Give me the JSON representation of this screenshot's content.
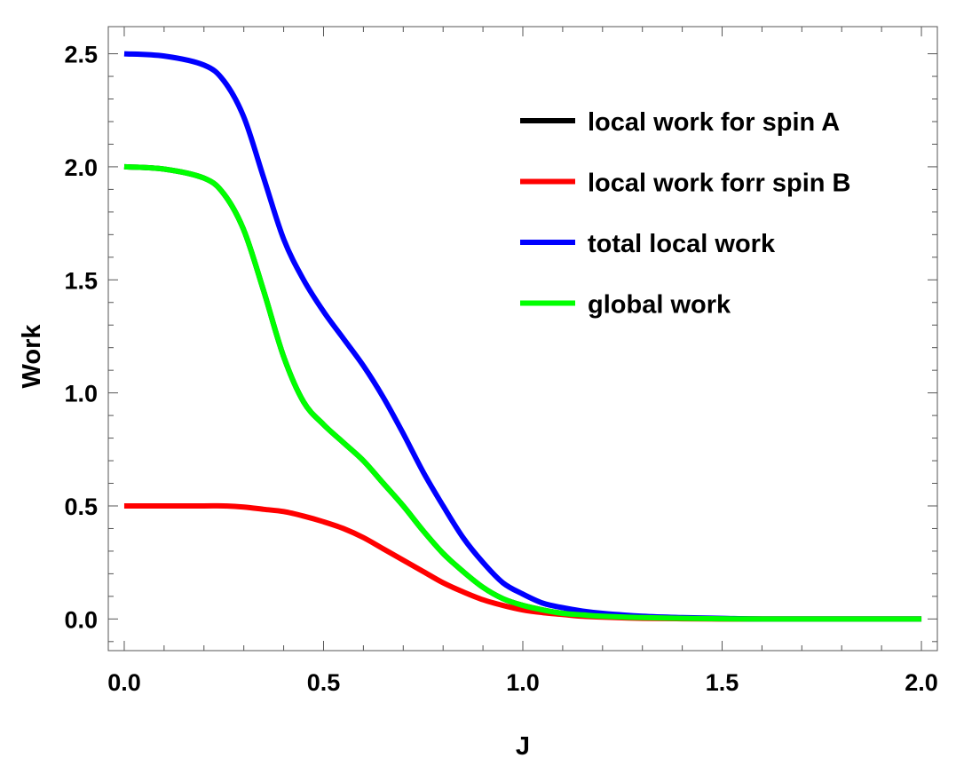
{
  "chart_data": {
    "type": "line",
    "title": "",
    "xlabel": "J",
    "ylabel": "Work",
    "xlim": [
      -0.04,
      2.04
    ],
    "ylim": [
      -0.14,
      2.62
    ],
    "xticks": [
      0.0,
      0.5,
      1.0,
      1.5,
      2.0
    ],
    "xtick_labels": [
      "0.0",
      "0.5",
      "1.0",
      "1.5",
      "2.0"
    ],
    "yticks": [
      0.0,
      0.5,
      1.0,
      1.5,
      2.0,
      2.5
    ],
    "ytick_labels": [
      "0.0",
      "0.5",
      "1.0",
      "1.5",
      "2.0",
      "2.5"
    ],
    "grid": false,
    "legend_position": "top-right",
    "x": [
      0.0,
      0.1,
      0.2,
      0.25,
      0.3,
      0.35,
      0.4,
      0.45,
      0.5,
      0.55,
      0.6,
      0.65,
      0.7,
      0.75,
      0.8,
      0.85,
      0.9,
      0.95,
      1.0,
      1.05,
      1.1,
      1.15,
      1.2,
      1.3,
      1.4,
      1.5,
      1.6,
      1.8,
      2.0
    ],
    "series": [
      {
        "name": "local work for spin A",
        "color": "#000000",
        "values": [
          2.0,
          1.99,
          1.95,
          1.88,
          1.72,
          1.45,
          1.16,
          0.96,
          0.86,
          0.78,
          0.7,
          0.6,
          0.5,
          0.39,
          0.29,
          0.21,
          0.14,
          0.09,
          0.06,
          0.04,
          0.025,
          0.018,
          0.012,
          0.006,
          0.003,
          0.001,
          0.0,
          0.0,
          0.0
        ]
      },
      {
        "name": "local work forr spin B",
        "color": "#ff0000",
        "values": [
          0.5,
          0.5,
          0.5,
          0.5,
          0.495,
          0.485,
          0.475,
          0.455,
          0.43,
          0.4,
          0.36,
          0.31,
          0.26,
          0.21,
          0.16,
          0.12,
          0.085,
          0.06,
          0.04,
          0.028,
          0.02,
          0.012,
          0.008,
          0.003,
          0.001,
          0.0,
          0.0,
          0.0,
          0.0
        ]
      },
      {
        "name": "total local work",
        "color": "#0000ff",
        "values": [
          2.5,
          2.49,
          2.45,
          2.38,
          2.22,
          1.95,
          1.68,
          1.5,
          1.36,
          1.24,
          1.12,
          0.98,
          0.82,
          0.65,
          0.5,
          0.36,
          0.25,
          0.16,
          0.11,
          0.07,
          0.05,
          0.035,
          0.025,
          0.012,
          0.006,
          0.003,
          0.0,
          0.0,
          0.0
        ]
      },
      {
        "name": "global work",
        "color": "#00ff00",
        "values": [
          2.0,
          1.99,
          1.95,
          1.88,
          1.72,
          1.45,
          1.16,
          0.96,
          0.86,
          0.78,
          0.7,
          0.6,
          0.5,
          0.39,
          0.29,
          0.21,
          0.14,
          0.09,
          0.06,
          0.04,
          0.025,
          0.018,
          0.012,
          0.006,
          0.003,
          0.001,
          0.0,
          0.0,
          0.0
        ]
      }
    ]
  }
}
